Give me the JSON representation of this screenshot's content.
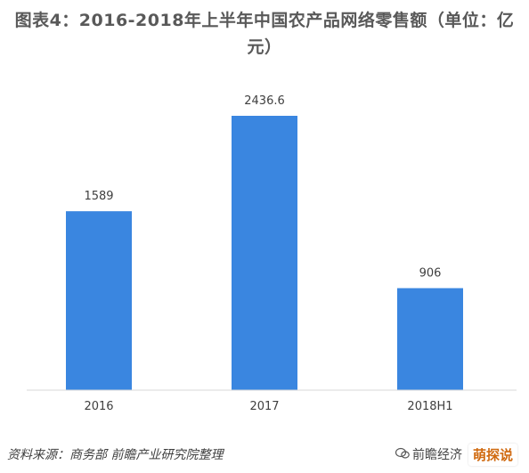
{
  "title": "图表4：2016-2018年上半年中国农产品网络零售额（单位：亿元）",
  "source": "资料来源：商务部 前瞻产业研究院整理",
  "watermark_text": "前瞻经济",
  "corner_stamp": "萌探说",
  "colors": {
    "bar": "#3a86e0",
    "axis": "#d9d9d9",
    "label": "#404040",
    "title": "#595959"
  },
  "chart_data": {
    "type": "bar",
    "categories": [
      "2016",
      "2017",
      "2018H1"
    ],
    "values": [
      1589,
      2436.6,
      906
    ],
    "value_labels": [
      "1589",
      "2436.6",
      "906"
    ],
    "title": "图表4：2016-2018年上半年中国农产品网络零售额（单位：亿元）",
    "xlabel": "",
    "ylabel": "",
    "ylim": [
      0,
      2436.6
    ],
    "grid": false,
    "legend": "none"
  }
}
